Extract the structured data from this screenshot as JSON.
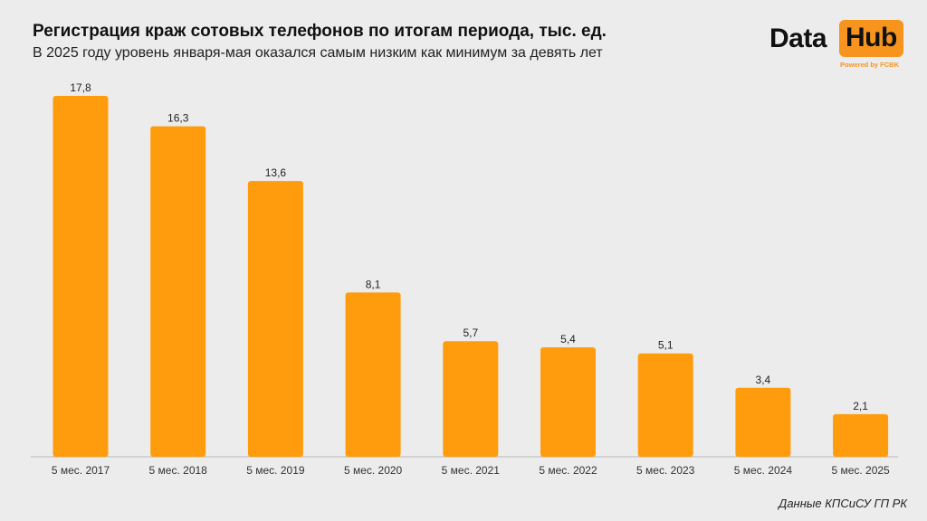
{
  "header": {
    "title": "Регистрация краж сотовых телефонов по итогам периода, тыс. ед.",
    "subtitle": "В 2025 году уровень января-мая оказался самым низким как минимум за девять лет"
  },
  "logo": {
    "data_text": "Data",
    "hub_text": "Hub",
    "powered_text": "Powered by FCBK"
  },
  "source": "Данные КПСиСУ ГП РК",
  "colors": {
    "bar": "#ff9c0d",
    "background": "#ececec",
    "logo_accent": "#f7941d"
  },
  "chart_data": {
    "type": "bar",
    "categories": [
      "5 мес. 2017",
      "5 мес. 2018",
      "5 мес. 2019",
      "5 мес. 2020",
      "5 мес. 2021",
      "5 мес. 2022",
      "5 мес. 2023",
      "5 мес. 2024",
      "5 мес. 2025"
    ],
    "values": [
      17.8,
      16.3,
      13.6,
      8.1,
      5.7,
      5.4,
      5.1,
      3.4,
      2.1
    ],
    "value_labels": [
      "17,8",
      "16,3",
      "13,6",
      "8,1",
      "5,7",
      "5,4",
      "5,1",
      "3,4",
      "2,1"
    ],
    "title": "Регистрация краж сотовых телефонов по итогам периода, тыс. ед.",
    "subtitle": "В 2025 году уровень января-мая оказался самым низким как минимум за девять лет",
    "xlabel": "",
    "ylabel": "",
    "ylim": [
      0,
      18
    ],
    "grid": false,
    "legend": "none"
  }
}
